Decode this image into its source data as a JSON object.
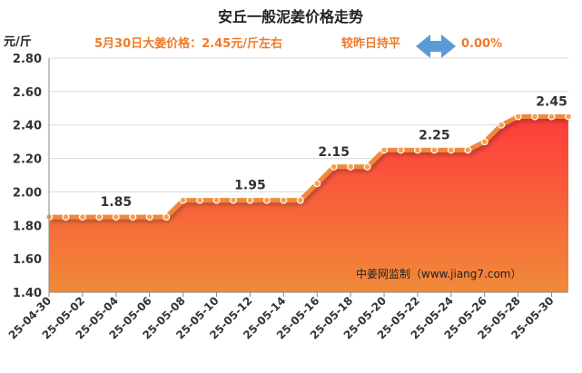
{
  "title": "安丘一般泥姜价格走势",
  "unit": "元/斤",
  "subtitle": {
    "price_text": "5月30日大姜价格：2.45元/斤左右",
    "change_text": "较昨日持平",
    "change_value": "0.00%",
    "arrow_icon": "double-arrow-icon",
    "arrow_color": "#5b9bd5"
  },
  "watermark": "中姜网监制（www.jiang7.com）",
  "colors": {
    "line": "#f08a3a",
    "marker": "#f5a04e",
    "area_top": "#ff3b3b",
    "area_bottom": "#f08a3a",
    "grid": "#d9d9d9"
  },
  "chart_data": {
    "type": "area",
    "ylim": [
      1.4,
      2.8
    ],
    "yticks": [
      "1.40",
      "1.60",
      "1.80",
      "2.00",
      "2.20",
      "2.40",
      "2.60",
      "2.80"
    ],
    "xtick_labels": [
      "25-04-30",
      "25-05-02",
      "25-05-04",
      "25-05-06",
      "25-05-08",
      "25-05-10",
      "25-05-12",
      "25-05-14",
      "25-05-16",
      "25-05-18",
      "25-05-20",
      "25-05-22",
      "25-05-24",
      "25-05-26",
      "25-05-28",
      "25-05-30"
    ],
    "series": [
      {
        "values": [
          1.85,
          1.85,
          1.85,
          1.85,
          1.85,
          1.85,
          1.85,
          1.85,
          1.95,
          1.95,
          1.95,
          1.95,
          1.95,
          1.95,
          1.95,
          1.95,
          2.05,
          2.15,
          2.15,
          2.15,
          2.25,
          2.25,
          2.25,
          2.25,
          2.25,
          2.25,
          2.3,
          2.4,
          2.45,
          2.45,
          2.45,
          2.45
        ]
      }
    ],
    "data_labels": [
      {
        "index": 4,
        "text": "1.85"
      },
      {
        "index": 12,
        "text": "1.95"
      },
      {
        "index": 17,
        "text": "2.15"
      },
      {
        "index": 23,
        "text": "2.25"
      },
      {
        "index": 30,
        "text": "2.45"
      }
    ]
  }
}
